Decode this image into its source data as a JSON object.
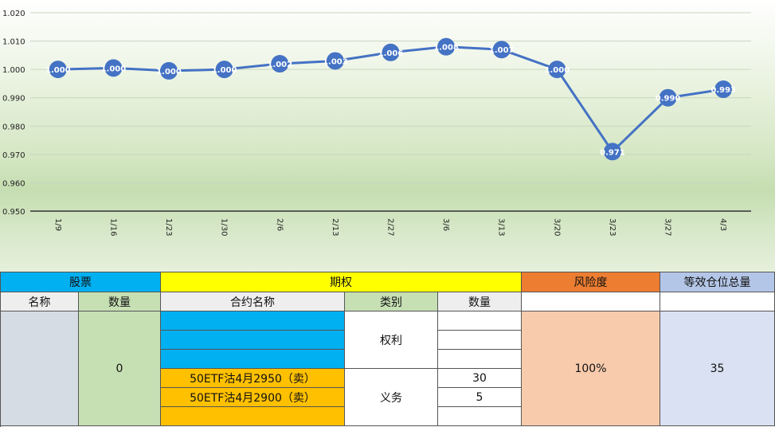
{
  "chart_data": {
    "type": "line",
    "categories": [
      "1/9",
      "1/16",
      "1/23",
      "1/30",
      "2/6",
      "2/13",
      "2/27",
      "3/6",
      "3/13",
      "3/20",
      "3/23",
      "3/27",
      "4/3"
    ],
    "values": [
      1.0,
      1.0005,
      0.9995,
      1.0,
      1.002,
      1.003,
      1.006,
      1.008,
      1.007,
      1.0,
      0.971,
      0.99,
      0.993
    ],
    "labels": [
      "1.000",
      "1.000",
      "1.000",
      "1.000",
      "1.002",
      "1.003",
      "1.006",
      "1.008",
      "1.007",
      "1.000",
      "0.971",
      "0.990",
      "0.993"
    ],
    "yticks": [
      "0.950",
      "0.960",
      "0.970",
      "0.980",
      "0.990",
      "1.000",
      "1.010",
      "1.020"
    ],
    "ylim": [
      0.95,
      1.02
    ],
    "grid": true,
    "legend": "none",
    "line_color": "#4472c4"
  },
  "table": {
    "group_stock": "股票",
    "group_option": "期权",
    "group_risk": "风险度",
    "group_equiv": "等效仓位总量",
    "col_name": "名称",
    "col_qty": "数量",
    "col_contract": "合约名称",
    "col_type": "类别",
    "col_opt_qty": "数量",
    "stock_qty": "0",
    "type_right": "权利",
    "type_obligation": "义务",
    "contract_4": "50ETF沽4月2950（卖）",
    "contract_5": "50ETF沽4月2900（卖）",
    "opt_qty_4": "30",
    "opt_qty_5": "5",
    "risk_value": "100%",
    "equiv_value": "35"
  },
  "colors": {
    "stock_header": "#00b0f0",
    "option_header": "#ffff00",
    "risk_header": "#ed7d31",
    "equiv_header": "#b4c6e7",
    "subheader": "#eeeeee",
    "qty_sub": "#c6e0b4",
    "stock_name_body": "#d6dce4",
    "stock_qty_body": "#c6e0b4",
    "right_rows": "#00b0f0",
    "obligation_rows": "#ffc000",
    "risk_body": "#f8cbad",
    "equiv_body": "#d9e1f2"
  }
}
